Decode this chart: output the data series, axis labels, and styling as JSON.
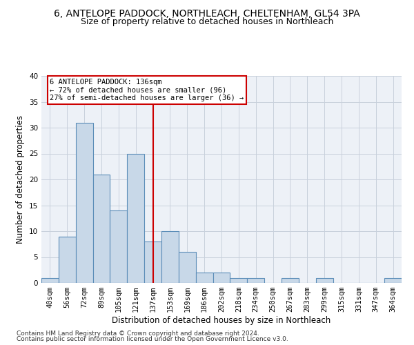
{
  "title": "6, ANTELOPE PADDOCK, NORTHLEACH, CHELTENHAM, GL54 3PA",
  "subtitle": "Size of property relative to detached houses in Northleach",
  "xlabel": "Distribution of detached houses by size in Northleach",
  "ylabel": "Number of detached properties",
  "all_labels": [
    "40sqm",
    "56sqm",
    "72sqm",
    "89sqm",
    "105sqm",
    "121sqm",
    "137sqm",
    "153sqm",
    "169sqm",
    "186sqm",
    "202sqm",
    "218sqm",
    "234sqm",
    "250sqm",
    "267sqm",
    "283sqm",
    "299sqm",
    "315sqm",
    "331sqm",
    "347sqm",
    "364sqm"
  ],
  "all_values": [
    1,
    9,
    31,
    21,
    14,
    25,
    8,
    10,
    6,
    2,
    2,
    1,
    1,
    0,
    1,
    0,
    1,
    0,
    0,
    0,
    1
  ],
  "bar_color": "#c8d8e8",
  "bar_edge_color": "#5b8db8",
  "vline_idx": 6,
  "vline_color": "#cc0000",
  "annotation_line1": "6 ANTELOPE PADDOCK: 136sqm",
  "annotation_line2": "← 72% of detached houses are smaller (96)",
  "annotation_line3": "27% of semi-detached houses are larger (36) →",
  "annotation_box_color": "#cc0000",
  "ylim": [
    0,
    40
  ],
  "yticks": [
    0,
    5,
    10,
    15,
    20,
    25,
    30,
    35,
    40
  ],
  "grid_color": "#c8d0dc",
  "bg_color": "#edf1f7",
  "footer1": "Contains HM Land Registry data © Crown copyright and database right 2024.",
  "footer2": "Contains public sector information licensed under the Open Government Licence v3.0.",
  "title_fontsize": 10,
  "subtitle_fontsize": 9,
  "xlabel_fontsize": 8.5,
  "ylabel_fontsize": 8.5,
  "tick_fontsize": 7.5,
  "footer_fontsize": 6.5
}
